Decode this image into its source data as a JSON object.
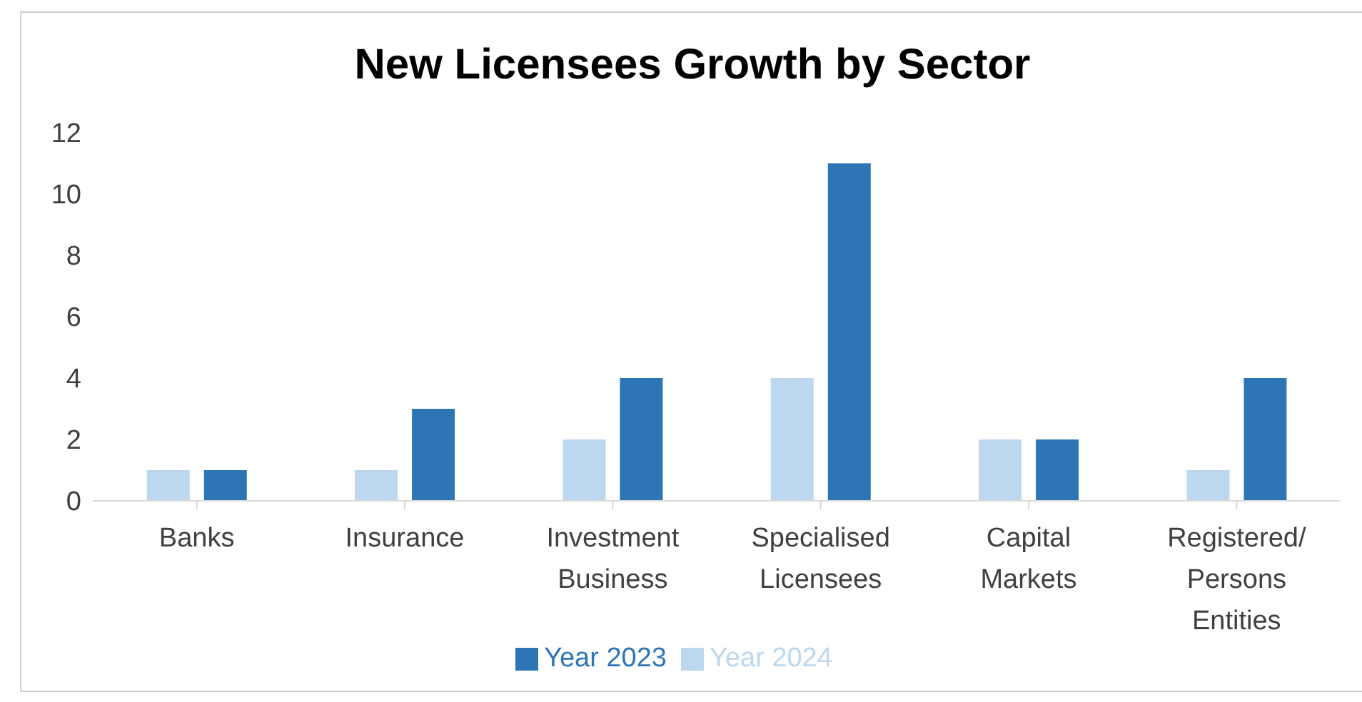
{
  "chart_data": {
    "type": "bar",
    "title": "New Licensees Growth by Sector",
    "categories": [
      "Banks",
      "Insurance",
      "Investment Business",
      "Specialised Licensees",
      "Capital Markets",
      "Registered/Persons Entities"
    ],
    "series": [
      {
        "name": "Year 2024",
        "color": "#bdd7ee",
        "values": [
          1,
          1,
          2,
          4,
          2,
          1
        ]
      },
      {
        "name": "Year 2023",
        "color": "#2e75b6",
        "values": [
          1,
          3,
          4,
          11,
          2,
          4
        ]
      }
    ],
    "ylim": [
      0,
      12
    ],
    "yticks": [
      0,
      2,
      4,
      6,
      8,
      10,
      12
    ],
    "grid": false,
    "legend": "bottom"
  }
}
